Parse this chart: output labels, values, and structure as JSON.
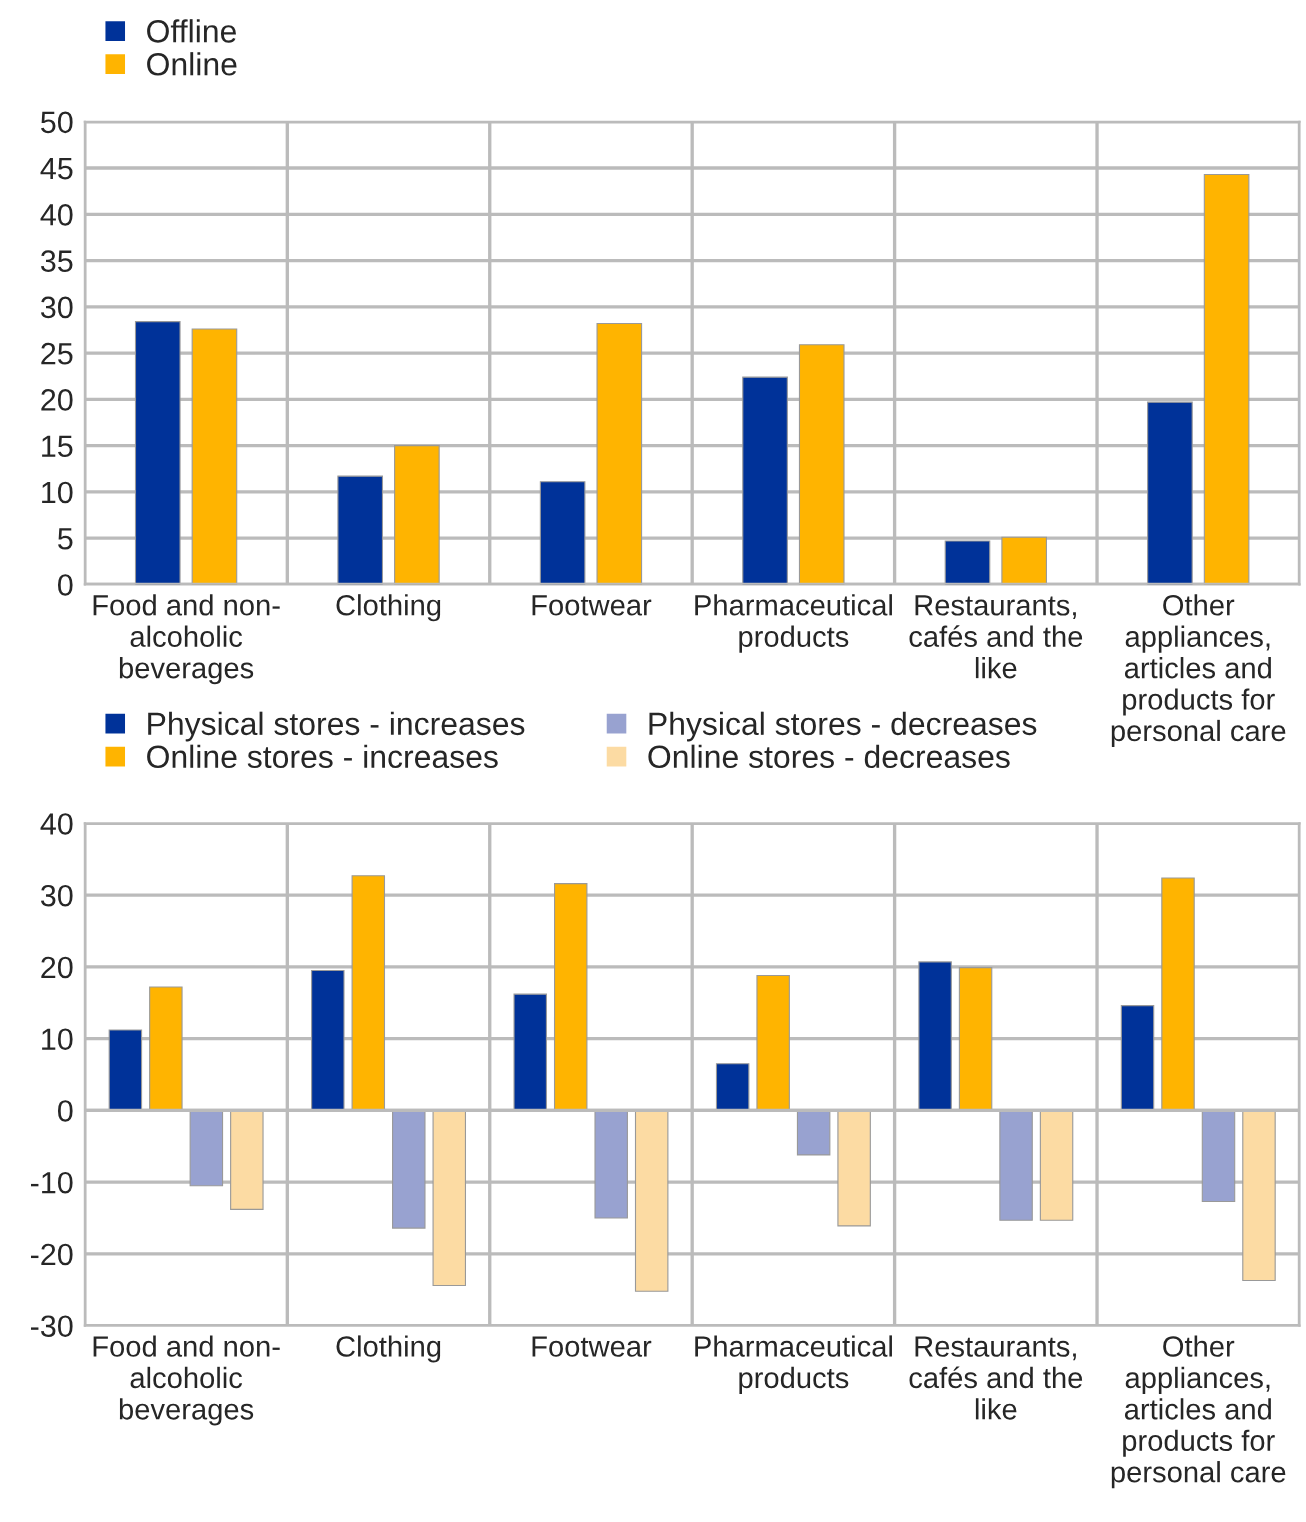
{
  "chart_data": [
    {
      "type": "bar",
      "categories": [
        "Food and non-\nalcoholic\nbeverages",
        "Clothing",
        "Footwear",
        "Pharmaceutical\nproducts",
        "Restaurants,\ncafés and the\nlike",
        "Other\nappliances,\narticles and\nproducts for\npersonal care"
      ],
      "series": [
        {
          "name": "Offline",
          "color": "#003299",
          "values": [
            28.4,
            11.7,
            11.1,
            22.4,
            4.7,
            19.7
          ]
        },
        {
          "name": "Online",
          "color": "#ffb400",
          "values": [
            27.6,
            15.0,
            28.2,
            25.9,
            5.1,
            44.3
          ]
        }
      ],
      "ylim": [
        0,
        50
      ],
      "yticks": [
        0,
        5,
        10,
        15,
        20,
        25,
        30,
        35,
        40,
        45,
        50
      ],
      "grid": true,
      "legend": "top left"
    },
    {
      "type": "bar",
      "categories": [
        "Food and non-\nalcoholic\nbeverages",
        "Clothing",
        "Footwear",
        "Pharmaceutical\nproducts",
        "Restaurants,\ncafés and the\nlike",
        "Other\nappliances,\narticles and\nproducts for\npersonal care"
      ],
      "series": [
        {
          "name": "Physical stores - increases",
          "color": "#003299",
          "values": [
            11.2,
            19.5,
            16.2,
            6.5,
            20.7,
            14.6
          ]
        },
        {
          "name": "Online stores - increases",
          "color": "#ffb400",
          "values": [
            17.2,
            32.7,
            31.6,
            18.8,
            19.9,
            32.4
          ]
        },
        {
          "name": "Physical stores - decreases",
          "color": "#98a2d0",
          "values": [
            -10.5,
            -16.4,
            -15.0,
            -6.2,
            -15.3,
            -12.7
          ]
        },
        {
          "name": "Online stores - decreases",
          "color": "#fcdba3",
          "values": [
            -13.8,
            -24.4,
            -25.2,
            -16.1,
            -15.3,
            -23.7
          ]
        }
      ],
      "ylim": [
        -30,
        40
      ],
      "yticks": [
        -30,
        -20,
        -10,
        0,
        10,
        20,
        30,
        40
      ],
      "grid": true,
      "legend": "top"
    }
  ]
}
